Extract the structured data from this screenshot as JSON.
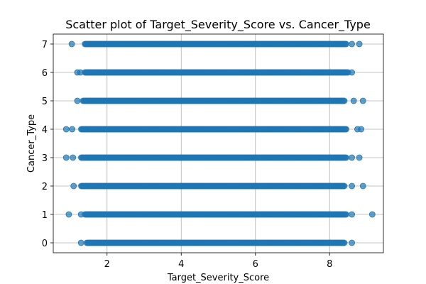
{
  "chart_data": {
    "type": "scatter",
    "title": "Scatter plot of Target_Severity_Score vs. Cancer_Type",
    "xlabel": "Target_Severity_Score",
    "ylabel": "Cancer_Type",
    "xlim": [
      0.55,
      9.45
    ],
    "ylim": [
      -0.35,
      7.35
    ],
    "x_ticks": [
      2,
      4,
      6,
      8
    ],
    "y_ticks": [
      0,
      1,
      2,
      3,
      4,
      5,
      6,
      7
    ],
    "grid": true,
    "color": "#1f77b4",
    "rows": [
      {
        "y": 0,
        "dense_range": [
          1.45,
          8.4
        ],
        "outliers": [
          1.3,
          8.6
        ]
      },
      {
        "y": 1,
        "dense_range": [
          1.4,
          8.45
        ],
        "outliers": [
          0.97,
          1.3,
          8.6,
          9.15
        ]
      },
      {
        "y": 2,
        "dense_range": [
          1.3,
          8.4
        ],
        "outliers": [
          1.1,
          8.6,
          8.9
        ]
      },
      {
        "y": 3,
        "dense_range": [
          1.3,
          8.45
        ],
        "outliers": [
          0.9,
          1.08,
          8.6,
          8.8
        ]
      },
      {
        "y": 4,
        "dense_range": [
          1.3,
          8.45
        ],
        "outliers": [
          0.9,
          1.06,
          8.75,
          8.85
        ]
      },
      {
        "y": 5,
        "dense_range": [
          1.35,
          8.4
        ],
        "outliers": [
          1.2,
          8.65,
          8.9
        ]
      },
      {
        "y": 6,
        "dense_range": [
          1.4,
          8.5
        ],
        "outliers": [
          1.2,
          1.28,
          8.6
        ]
      },
      {
        "y": 7,
        "dense_range": [
          1.4,
          8.45
        ],
        "outliers": [
          1.05,
          8.6,
          8.8
        ]
      }
    ]
  }
}
